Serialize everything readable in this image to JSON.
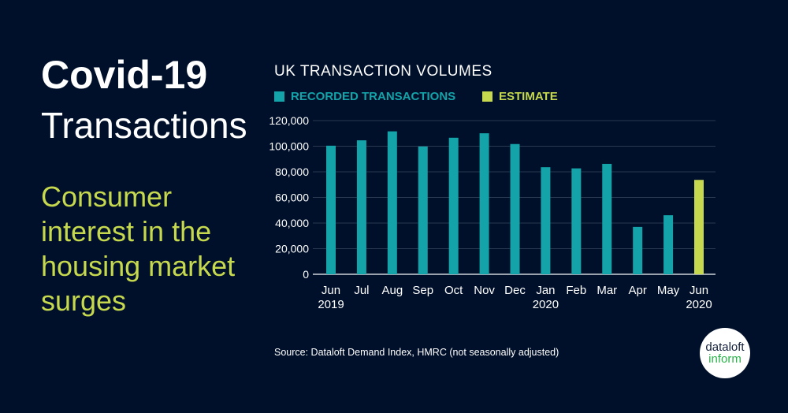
{
  "headline": {
    "title": "Covid-19",
    "title2": "Transactions",
    "subtitle": "Consumer interest in the housing market surges"
  },
  "chart_data": {
    "type": "bar",
    "title": "UK TRANSACTION VOLUMES",
    "categories": [
      "Jun\n2019",
      "Jul",
      "Aug",
      "Sep",
      "Oct",
      "Nov",
      "Dec",
      "Jan\n2020",
      "Feb",
      "Mar",
      "Apr",
      "May",
      "Jun\n2020"
    ],
    "values": [
      100400,
      104600,
      111600,
      99800,
      106600,
      110100,
      101700,
      83600,
      82700,
      86200,
      37000,
      46100,
      73700
    ],
    "series_type": [
      "recorded",
      "recorded",
      "recorded",
      "recorded",
      "recorded",
      "recorded",
      "recorded",
      "recorded",
      "recorded",
      "recorded",
      "recorded",
      "recorded",
      "estimate"
    ],
    "legend": [
      {
        "name": "RECORDED TRANSACTIONS",
        "color": "#13a3a8"
      },
      {
        "name": "ESTIMATE",
        "color": "#c6d94e"
      }
    ],
    "yticks": [
      "0",
      "20,000",
      "40,000",
      "60,000",
      "80,000",
      "100,000",
      "120,000"
    ],
    "ylim": [
      0,
      120000
    ],
    "grid": true,
    "legend_placement": "top-left"
  },
  "source": "Source: Dataloft Demand Index, HMRC (not seasonally adjusted)",
  "logo": {
    "line1": "dataloft",
    "line2": "inform"
  }
}
